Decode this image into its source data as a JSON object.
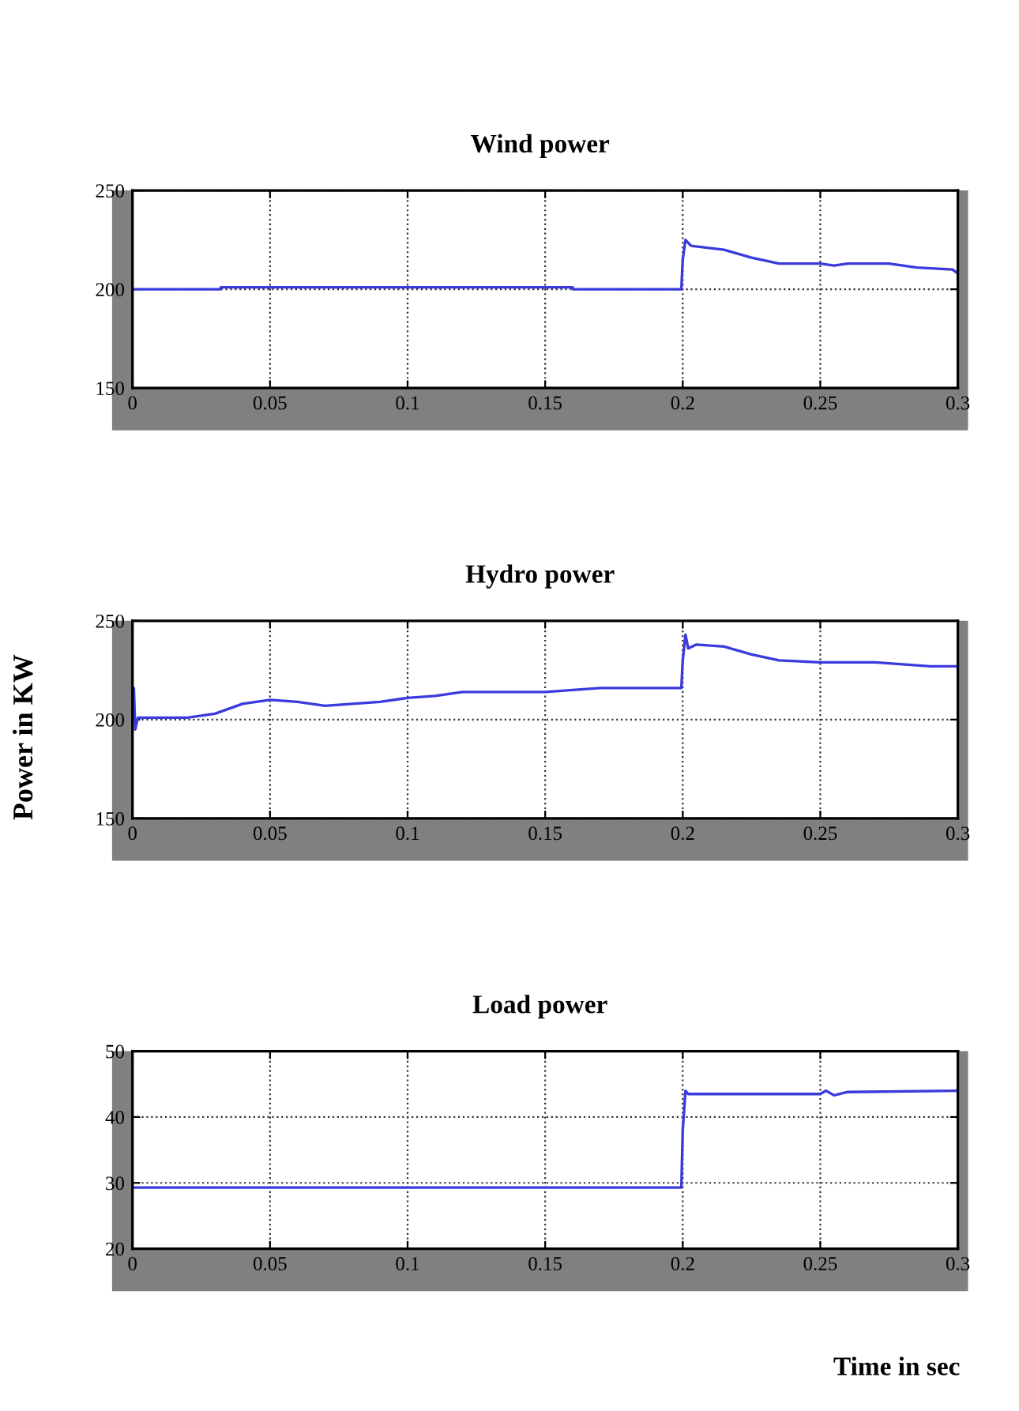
{
  "chart_data": [
    {
      "type": "line",
      "title": "Wind power",
      "xlim": [
        0,
        0.3
      ],
      "ylim": [
        150,
        250
      ],
      "xticks": [
        0,
        0.05,
        0.1,
        0.15,
        0.2,
        0.25,
        0.3
      ],
      "yticks": [
        150,
        200,
        250
      ],
      "grid": true,
      "line_style": "solid",
      "series": [
        {
          "color": "#3a3ade",
          "x": [
            0,
            0.032,
            0.0321,
            0.16,
            0.1601,
            0.1995,
            0.2,
            0.201,
            0.203,
            0.215,
            0.225,
            0.235,
            0.25,
            0.255,
            0.26,
            0.275,
            0.285,
            0.298,
            0.3
          ],
          "values": [
            200,
            200,
            201,
            201,
            200,
            200,
            215,
            225,
            222,
            220,
            216,
            213,
            213,
            212,
            213,
            213,
            211,
            210,
            208
          ]
        }
      ]
    },
    {
      "type": "line",
      "title": "Hydro power",
      "ylabel": "Power in KW",
      "xlim": [
        0,
        0.3
      ],
      "ylim": [
        150,
        250
      ],
      "xticks": [
        0,
        0.05,
        0.1,
        0.15,
        0.2,
        0.25,
        0.3
      ],
      "yticks": [
        150,
        200,
        250
      ],
      "grid": true,
      "line_style": "solid",
      "series": [
        {
          "color": "#3a3ade",
          "x": [
            0,
            0.0005,
            0.001,
            0.002,
            0.02,
            0.03,
            0.04,
            0.05,
            0.06,
            0.07,
            0.08,
            0.09,
            0.1,
            0.11,
            0.12,
            0.15,
            0.16,
            0.17,
            0.1995,
            0.2,
            0.201,
            0.202,
            0.205,
            0.215,
            0.225,
            0.235,
            0.25,
            0.27,
            0.28,
            0.29,
            0.3
          ],
          "values": [
            200,
            216,
            195,
            201,
            201,
            203,
            208,
            210,
            209,
            207,
            208,
            209,
            211,
            212,
            214,
            214,
            215,
            216,
            216,
            230,
            243,
            236,
            238,
            237,
            233,
            230,
            229,
            229,
            228,
            227,
            227
          ]
        }
      ]
    },
    {
      "type": "line",
      "title": "Load power",
      "xlabel": "Time in sec",
      "xlim": [
        0,
        0.3
      ],
      "ylim": [
        20,
        50
      ],
      "xticks": [
        0,
        0.05,
        0.1,
        0.15,
        0.2,
        0.25,
        0.3
      ],
      "yticks": [
        20,
        30,
        40,
        50
      ],
      "grid": true,
      "line_style": "solid",
      "series": [
        {
          "color": "#3a3ade",
          "x": [
            0,
            0.1995,
            0.2,
            0.201,
            0.202,
            0.25,
            0.252,
            0.255,
            0.26,
            0.3
          ],
          "values": [
            29.3,
            29.3,
            38,
            44,
            43.5,
            43.5,
            44,
            43.3,
            43.8,
            44
          ]
        }
      ]
    }
  ]
}
